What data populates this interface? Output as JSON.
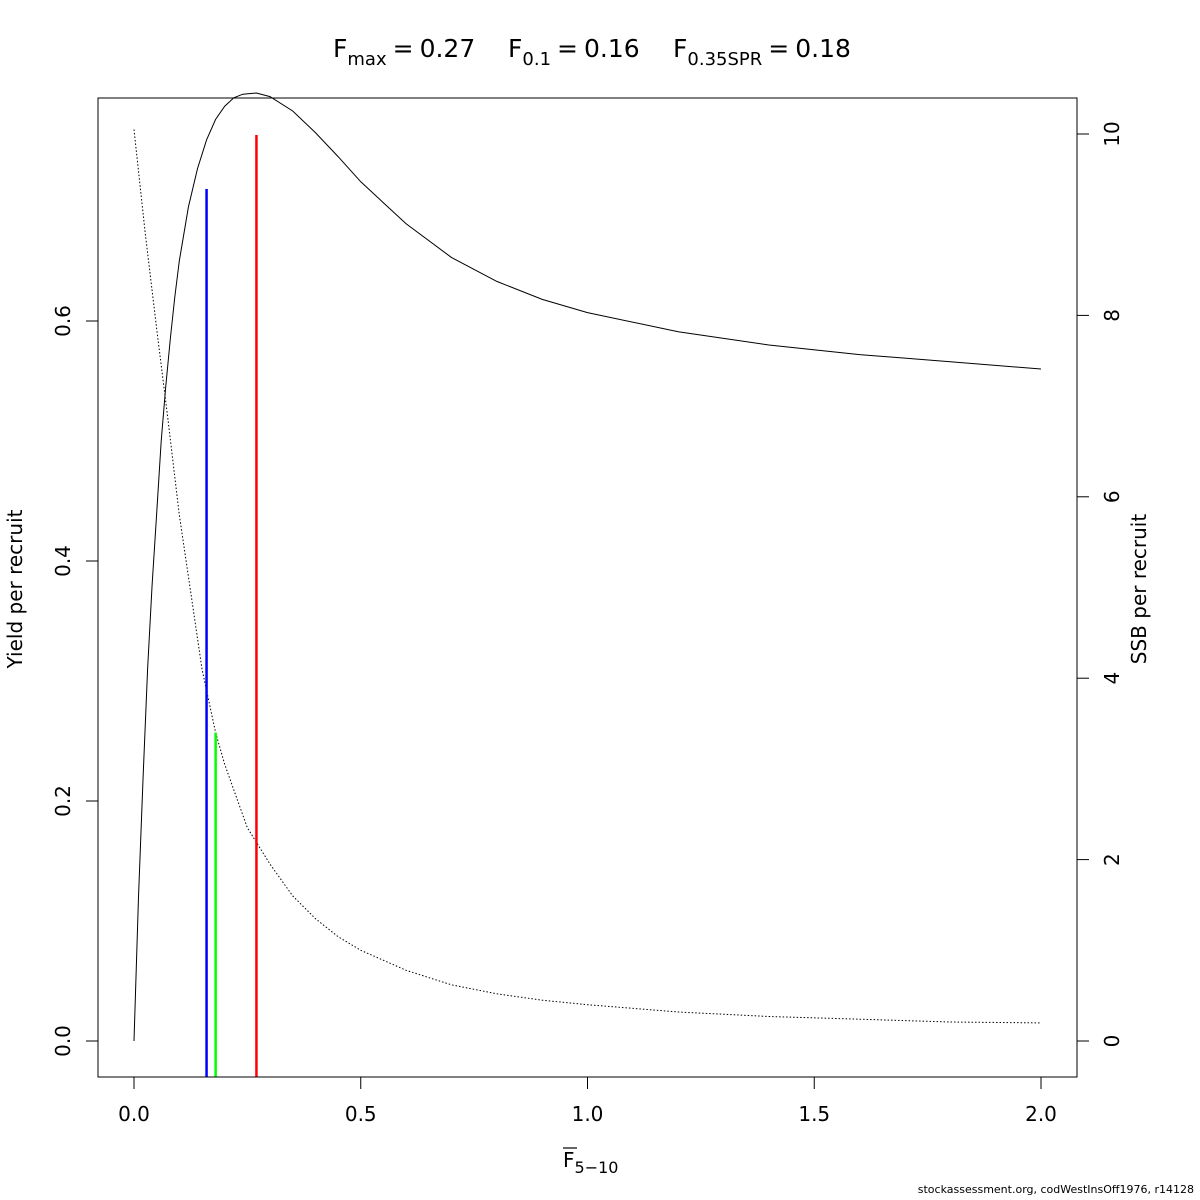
{
  "chart_data": {
    "type": "line",
    "title_parts": [
      {
        "symbol": "F",
        "subscript": "max",
        "equals": "=",
        "value": "0.27"
      },
      {
        "symbol": "F",
        "subscript": "0.1",
        "equals": "=",
        "value": "0.16"
      },
      {
        "symbol": "F",
        "subscript": "0.35SPR",
        "equals": "=",
        "value": "0.18"
      }
    ],
    "xlabel": {
      "symbol": "F",
      "subscript": "5−10",
      "overline": true
    },
    "ylabel_left": "Yield per recruit",
    "ylabel_right": "SSB per recruit",
    "xlim": [
      0,
      2
    ],
    "ylim_left": [
      -0.03,
      0.785
    ],
    "ylim_right": [
      -0.4,
      10.4
    ],
    "x_ticks": [
      "0.0",
      "0.5",
      "1.0",
      "1.5",
      "2.0"
    ],
    "y_left_ticks": [
      "0.0",
      "0.2",
      "0.4",
      "0.6"
    ],
    "y_right_ticks": [
      "0",
      "2",
      "4",
      "6",
      "8",
      "10"
    ],
    "series": [
      {
        "axis": "left",
        "style": "solid",
        "color": "#000000",
        "points": [
          [
            0.0,
            0.0
          ],
          [
            0.01,
            0.12
          ],
          [
            0.02,
            0.22
          ],
          [
            0.03,
            0.31
          ],
          [
            0.04,
            0.38
          ],
          [
            0.05,
            0.44
          ],
          [
            0.06,
            0.5
          ],
          [
            0.07,
            0.545
          ],
          [
            0.08,
            0.585
          ],
          [
            0.09,
            0.62
          ],
          [
            0.1,
            0.65
          ],
          [
            0.12,
            0.695
          ],
          [
            0.14,
            0.727
          ],
          [
            0.16,
            0.751
          ],
          [
            0.18,
            0.768
          ],
          [
            0.2,
            0.779
          ],
          [
            0.22,
            0.786
          ],
          [
            0.24,
            0.789
          ],
          [
            0.27,
            0.79
          ],
          [
            0.3,
            0.787
          ],
          [
            0.35,
            0.775
          ],
          [
            0.4,
            0.757
          ],
          [
            0.45,
            0.737
          ],
          [
            0.5,
            0.716
          ],
          [
            0.6,
            0.681
          ],
          [
            0.7,
            0.653
          ],
          [
            0.8,
            0.633
          ],
          [
            0.9,
            0.618
          ],
          [
            1.0,
            0.607
          ],
          [
            1.2,
            0.591
          ],
          [
            1.4,
            0.58
          ],
          [
            1.6,
            0.572
          ],
          [
            1.8,
            0.566
          ],
          [
            2.0,
            0.56
          ]
        ]
      },
      {
        "axis": "right",
        "style": "dotted",
        "color": "#000000",
        "points": [
          [
            0.0,
            10.05
          ],
          [
            0.025,
            8.9
          ],
          [
            0.05,
            7.85
          ],
          [
            0.075,
            6.85
          ],
          [
            0.1,
            5.8
          ],
          [
            0.125,
            4.95
          ],
          [
            0.15,
            4.1
          ],
          [
            0.18,
            3.4
          ],
          [
            0.2,
            3.05
          ],
          [
            0.25,
            2.35
          ],
          [
            0.3,
            1.95
          ],
          [
            0.35,
            1.6
          ],
          [
            0.4,
            1.35
          ],
          [
            0.45,
            1.15
          ],
          [
            0.5,
            1.0
          ],
          [
            0.6,
            0.78
          ],
          [
            0.7,
            0.62
          ],
          [
            0.8,
            0.52
          ],
          [
            0.9,
            0.45
          ],
          [
            1.0,
            0.4
          ],
          [
            1.2,
            0.32
          ],
          [
            1.4,
            0.27
          ],
          [
            1.6,
            0.24
          ],
          [
            1.8,
            0.21
          ],
          [
            2.0,
            0.2
          ]
        ]
      }
    ],
    "reference_lines": [
      {
        "name": "F0.1",
        "x": 0.16,
        "axis": "left",
        "y_top": 0.71,
        "color": "#0000ff"
      },
      {
        "name": "F0.35SPR",
        "x": 0.18,
        "axis": "right",
        "y_top": 3.4,
        "color": "#00ff00"
      },
      {
        "name": "Fmax",
        "x": 0.27,
        "axis": "left",
        "y_top": 0.755,
        "color": "#ff0000"
      }
    ],
    "grid": false
  },
  "footer": "stockassessment.org, codWestInsOff1976, r14128"
}
